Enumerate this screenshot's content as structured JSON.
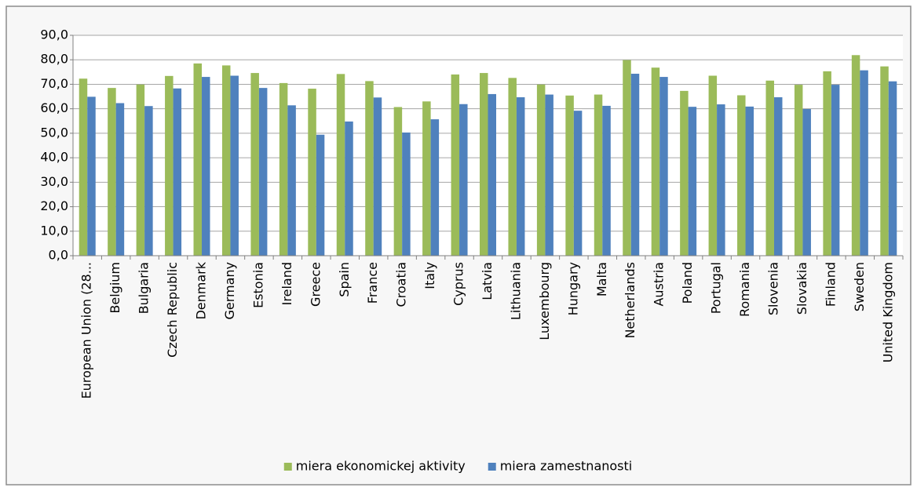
{
  "chart_data": {
    "type": "bar",
    "categories": [
      "European Union (28...",
      "Belgium",
      "Bulgaria",
      "Czech Republic",
      "Denmark",
      "Germany",
      "Estonia",
      "Ireland",
      "Greece",
      "Spain",
      "France",
      "Croatia",
      "Italy",
      "Cyprus",
      "Latvia",
      "Lithuania",
      "Luxembourg",
      "Hungary",
      "Malta",
      "Netherlands",
      "Austria",
      "Poland",
      "Portugal",
      "Romania",
      "Slovenia",
      "Slovakia",
      "Finland",
      "Sweden",
      "United Kingdom"
    ],
    "series": [
      {
        "name": "miera ekonomickej aktivity",
        "color": "#9bbb59",
        "values": [
          72.3,
          68.5,
          69.9,
          73.4,
          78.5,
          77.7,
          74.6,
          70.5,
          68.2,
          74.2,
          71.3,
          60.7,
          63.0,
          74.0,
          74.6,
          72.6,
          69.9,
          65.4,
          65.8,
          79.9,
          76.8,
          67.3,
          73.5,
          65.5,
          71.5,
          69.8,
          75.3,
          81.9,
          77.3
        ]
      },
      {
        "name": "miera zamestnanosti",
        "color": "#4f81bd",
        "values": [
          64.9,
          62.3,
          61.1,
          68.3,
          73.0,
          73.5,
          68.5,
          61.4,
          49.4,
          54.8,
          64.6,
          50.3,
          55.7,
          61.9,
          66.0,
          64.7,
          65.8,
          59.2,
          61.2,
          74.3,
          73.0,
          60.8,
          61.8,
          60.9,
          64.7,
          59.9,
          69.8,
          75.7,
          71.2
        ]
      }
    ],
    "ylim": [
      0,
      90
    ],
    "yticks": [
      {
        "value": 0,
        "label": "0,0"
      },
      {
        "value": 10,
        "label": "10,0"
      },
      {
        "value": 20,
        "label": "20,0"
      },
      {
        "value": 30,
        "label": "30,0"
      },
      {
        "value": 40,
        "label": "40,0"
      },
      {
        "value": 50,
        "label": "50,0"
      },
      {
        "value": 60,
        "label": "60,0"
      },
      {
        "value": 70,
        "label": "70,0"
      },
      {
        "value": 80,
        "label": "80,0"
      },
      {
        "value": 90,
        "label": "90,0"
      }
    ],
    "grid": true,
    "legend": "bottom"
  }
}
